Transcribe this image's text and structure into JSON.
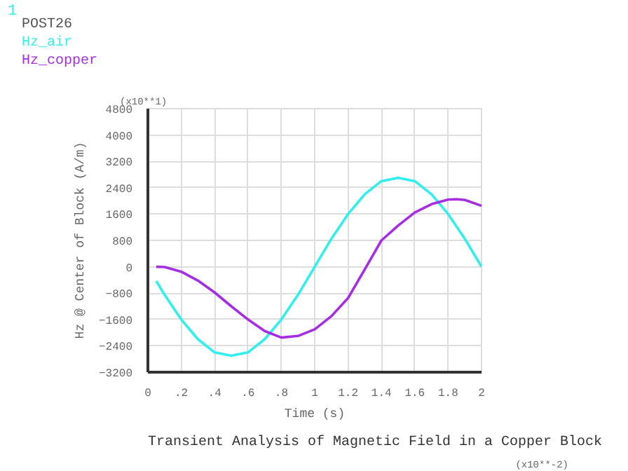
{
  "chart_data": {
    "type": "line",
    "title": "Transient Analysis of Magnetic Field in a Copper Block",
    "subtitle": "POST26",
    "xlabel": "Time (s)",
    "ylabel": "Hz @ Center of Block (A/m)",
    "annotations": [
      "1",
      "(x10**1)",
      "(x10**-2)"
    ],
    "series": [
      {
        "name": "Hz_air",
        "color": "#33eeee",
        "x": [
          0.05,
          0.1,
          0.2,
          0.3,
          0.4,
          0.5,
          0.6,
          0.7,
          0.8,
          0.9,
          1.0,
          1.1,
          1.2,
          1.3,
          1.4,
          1.5,
          1.6,
          1.7,
          1.8,
          1.9,
          2.0
        ],
        "values": [
          -430,
          -850,
          -1600,
          -2200,
          -2600,
          -2700,
          -2600,
          -2200,
          -1600,
          -850,
          0,
          850,
          1600,
          2200,
          2600,
          2700,
          2600,
          2200,
          1600,
          850,
          0
        ]
      },
      {
        "name": "Hz_copper",
        "color": "#a52ee0",
        "x": [
          0.05,
          0.1,
          0.2,
          0.3,
          0.4,
          0.5,
          0.6,
          0.7,
          0.8,
          0.9,
          1.0,
          1.1,
          1.2,
          1.3,
          1.4,
          1.5,
          1.6,
          1.7,
          1.8,
          1.85,
          1.9,
          2.0
        ],
        "values": [
          0,
          -10,
          -150,
          -420,
          -780,
          -1200,
          -1600,
          -1950,
          -2150,
          -2100,
          -1900,
          -1500,
          -950,
          -80,
          800,
          1250,
          1650,
          1900,
          2040,
          2050,
          2030,
          1850
        ]
      }
    ],
    "xlim": [
      0,
      2
    ],
    "ylim": [
      -3200,
      4800
    ],
    "xticks": [
      0,
      {
        "value": 0.2,
        "label": ".2"
      },
      {
        "value": 0.4,
        "label": ".4"
      },
      {
        "value": 0.6,
        "label": ".6"
      },
      {
        "value": 0.8,
        "label": ".8"
      },
      1,
      1.2,
      1.4,
      1.6,
      1.8,
      2
    ],
    "yticks": [
      -3200,
      -2400,
      -1600,
      -800,
      0,
      800,
      1600,
      2400,
      3200,
      4000,
      4800
    ],
    "grid": true,
    "line_style": "solid",
    "marker": "none"
  }
}
